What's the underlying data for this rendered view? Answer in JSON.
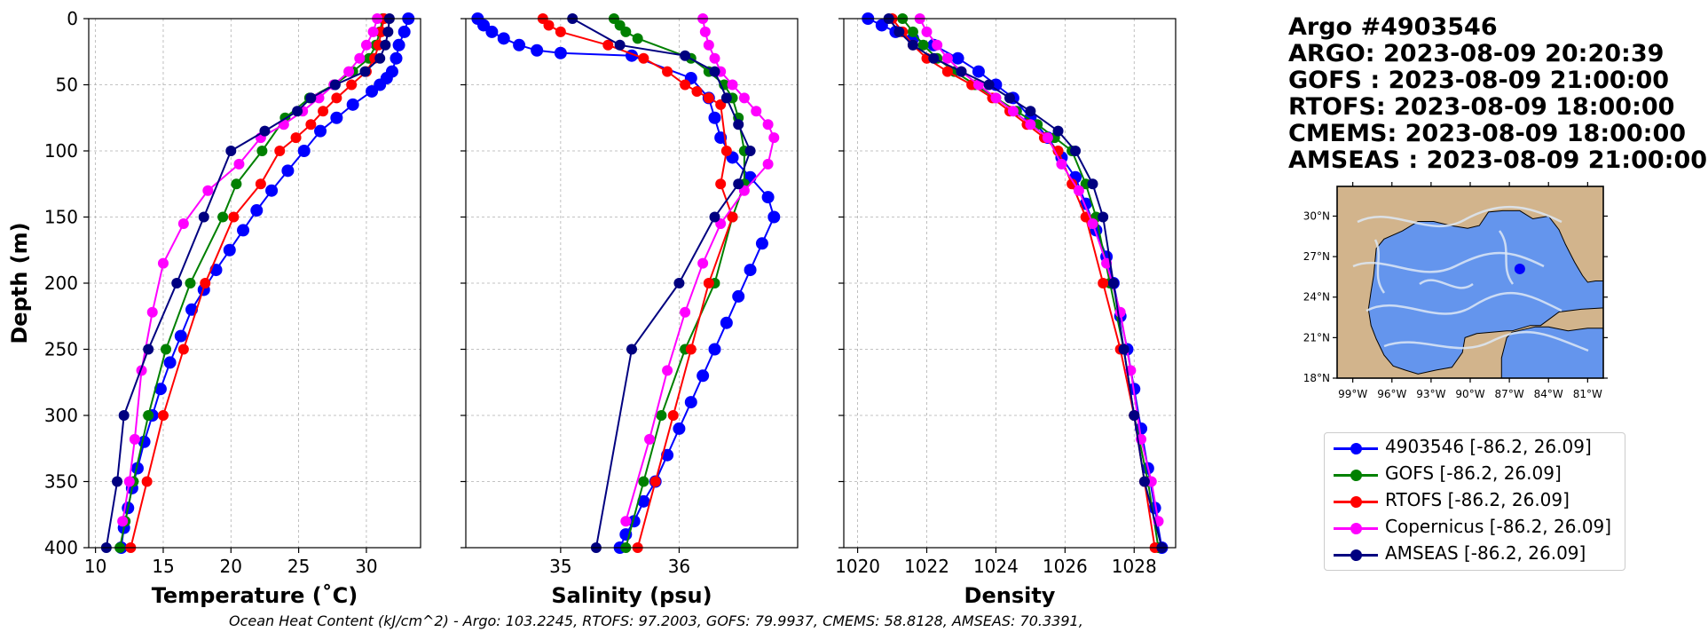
{
  "figure": {
    "footer": "Ocean Heat Content (kJ/cm^2) - Argo: 103.2245,  RTOFS: 97.2003,  GOFS: 79.9937,  CMEMS: 58.8128,  AMSEAS: 70.3391,"
  },
  "info": {
    "lines": [
      "Argo #4903546",
      "ARGO:  2023-08-09 20:20:39",
      "GOFS : 2023-08-09 21:00:00",
      "RTOFS: 2023-08-09 18:00:00",
      "CMEMS: 2023-08-09 18:00:00",
      "AMSEAS : 2023-08-09 21:00:00"
    ]
  },
  "legend": {
    "items": [
      {
        "label": "4903546 [-86.2, 26.09]",
        "color": "#0000ff"
      },
      {
        "label": "GOFS [-86.2, 26.09]",
        "color": "#008000"
      },
      {
        "label": "RTOFS [-86.2, 26.09]",
        "color": "#ff0000"
      },
      {
        "label": "Copernicus [-86.2, 26.09]",
        "color": "#ff00ff"
      },
      {
        "label": "AMSEAS [-86.2, 26.09]",
        "color": "#000080"
      }
    ]
  },
  "chart_data": [
    {
      "type": "line",
      "xlabel": "Temperature (˚C)",
      "ylabel": "Depth (m)",
      "xlim": [
        9.5,
        34
      ],
      "ylim": [
        400,
        0
      ],
      "xticks": [
        10,
        15,
        20,
        25,
        30
      ],
      "yticks": [
        0,
        50,
        100,
        150,
        200,
        250,
        300,
        350,
        400
      ],
      "grid": true,
      "series": [
        {
          "name": "4903546",
          "color": "#0000ff",
          "x": [
            33.1,
            32.8,
            32.4,
            32.2,
            31.9,
            31.5,
            31.0,
            30.4,
            29.0,
            27.8,
            26.6,
            25.4,
            24.2,
            23.0,
            21.9,
            20.9,
            19.9,
            18.9,
            18.0,
            17.1,
            16.3,
            15.5,
            14.8,
            14.2,
            13.6,
            13.1,
            12.7,
            12.4,
            12.1,
            11.9
          ],
          "y": [
            0,
            10,
            20,
            30,
            40,
            45,
            50,
            55,
            65,
            75,
            85,
            100,
            115,
            130,
            145,
            160,
            175,
            190,
            205,
            220,
            240,
            260,
            280,
            300,
            320,
            340,
            355,
            370,
            385,
            400
          ]
        },
        {
          "name": "GOFS",
          "color": "#008000",
          "x": [
            31.2,
            31.0,
            30.7,
            30.2,
            29.0,
            27.6,
            25.8,
            24.0,
            22.3,
            20.4,
            19.4,
            17.0,
            15.2,
            13.9,
            12.8,
            12.2,
            11.8
          ],
          "y": [
            0,
            10,
            20,
            30,
            40,
            50,
            60,
            75,
            100,
            125,
            150,
            200,
            250,
            300,
            350,
            380,
            400
          ]
        },
        {
          "name": "RTOFS",
          "color": "#ff0000",
          "x": [
            31.3,
            31.1,
            30.9,
            30.6,
            30.0,
            28.9,
            27.8,
            26.8,
            25.9,
            24.8,
            23.6,
            22.2,
            20.2,
            18.1,
            16.5,
            15.0,
            13.8,
            12.6
          ],
          "y": [
            0,
            10,
            20,
            30,
            40,
            50,
            60,
            70,
            80,
            90,
            100,
            125,
            150,
            200,
            250,
            300,
            350,
            400
          ]
        },
        {
          "name": "Copernicus",
          "color": "#ff00ff",
          "x": [
            30.8,
            30.5,
            30.0,
            29.5,
            28.7,
            27.6,
            26.5,
            25.3,
            23.9,
            22.2,
            20.6,
            18.3,
            16.5,
            15.0,
            14.2,
            13.4,
            12.9,
            12.5,
            12.0
          ],
          "y": [
            0,
            10,
            20,
            30,
            40,
            50,
            60,
            70,
            80,
            90,
            110,
            130,
            155,
            185,
            222,
            266,
            318,
            350,
            380
          ]
        },
        {
          "name": "AMSEAS",
          "color": "#000080",
          "x": [
            31.7,
            31.6,
            31.4,
            31.0,
            29.9,
            27.7,
            25.9,
            24.9,
            22.5,
            20.0,
            18.0,
            16.0,
            13.9,
            12.1,
            11.6,
            10.8
          ],
          "y": [
            0,
            10,
            20,
            30,
            40,
            50,
            60,
            70,
            85,
            100,
            150,
            200,
            250,
            300,
            350,
            400
          ]
        }
      ]
    },
    {
      "type": "line",
      "xlabel": "Salinity (psu)",
      "ylabel": "",
      "xlim": [
        34.2,
        37.0
      ],
      "ylim": [
        400,
        0
      ],
      "xticks": [
        35,
        36
      ],
      "yticks": [
        0,
        50,
        100,
        150,
        200,
        250,
        300,
        350,
        400
      ],
      "grid": true,
      "series": [
        {
          "name": "4903546",
          "color": "#0000ff",
          "x": [
            34.3,
            34.35,
            34.42,
            34.52,
            34.65,
            34.8,
            35.0,
            35.6,
            36.1,
            36.25,
            36.3,
            36.35,
            36.45,
            36.6,
            36.75,
            36.8,
            36.7,
            36.6,
            36.5,
            36.4,
            36.3,
            36.2,
            36.1,
            36.0,
            35.9,
            35.8,
            35.7,
            35.62,
            35.55,
            35.5
          ],
          "y": [
            0,
            5,
            10,
            15,
            20,
            24,
            26,
            28,
            45,
            60,
            75,
            90,
            105,
            120,
            135,
            150,
            170,
            190,
            210,
            230,
            250,
            270,
            290,
            310,
            330,
            350,
            365,
            380,
            390,
            400
          ]
        },
        {
          "name": "GOFS",
          "color": "#008000",
          "x": [
            35.45,
            35.5,
            35.55,
            35.65,
            36.1,
            36.25,
            36.38,
            36.45,
            36.5,
            36.55,
            36.55,
            36.45,
            36.3,
            36.05,
            35.85,
            35.7,
            35.55
          ],
          "y": [
            0,
            5,
            10,
            15,
            30,
            40,
            50,
            60,
            75,
            100,
            125,
            150,
            200,
            250,
            300,
            350,
            400
          ]
        },
        {
          "name": "RTOFS",
          "color": "#ff0000",
          "x": [
            34.85,
            34.9,
            35.0,
            35.4,
            35.7,
            35.9,
            36.05,
            36.15,
            36.25,
            36.35,
            36.4,
            36.35,
            36.45,
            36.25,
            36.1,
            35.95,
            35.8,
            35.65
          ],
          "y": [
            0,
            5,
            10,
            20,
            30,
            40,
            50,
            55,
            60,
            65,
            100,
            125,
            150,
            200,
            250,
            300,
            350,
            400
          ]
        },
        {
          "name": "Copernicus",
          "color": "#ff00ff",
          "x": [
            36.2,
            36.22,
            36.25,
            36.3,
            36.35,
            36.45,
            36.55,
            36.65,
            36.75,
            36.8,
            36.75,
            36.55,
            36.35,
            36.2,
            36.05,
            35.9,
            35.75,
            35.55
          ],
          "y": [
            0,
            10,
            20,
            30,
            40,
            50,
            60,
            70,
            80,
            90,
            110,
            130,
            155,
            185,
            222,
            266,
            318,
            380
          ]
        },
        {
          "name": "AMSEAS",
          "color": "#000080",
          "x": [
            35.1,
            35.5,
            36.05,
            36.3,
            36.4,
            36.5,
            36.6,
            36.5,
            36.3,
            36.0,
            35.6,
            35.3
          ],
          "y": [
            0,
            20,
            28,
            40,
            60,
            80,
            100,
            125,
            150,
            200,
            250,
            400
          ]
        }
      ]
    },
    {
      "type": "line",
      "xlabel": "Density",
      "ylabel": "",
      "xlim": [
        1019.6,
        1029.2
      ],
      "ylim": [
        400,
        0
      ],
      "xticks": [
        1020,
        1022,
        1024,
        1026,
        1028
      ],
      "yticks": [
        0,
        50,
        100,
        150,
        200,
        250,
        300,
        350,
        400
      ],
      "grid": true,
      "series": [
        {
          "name": "4903546",
          "color": "#0000ff",
          "x": [
            1020.3,
            1020.7,
            1021.1,
            1021.6,
            1022.2,
            1022.9,
            1023.5,
            1024.0,
            1024.5,
            1025.0,
            1025.5,
            1025.9,
            1026.3,
            1026.6,
            1026.9,
            1027.2,
            1027.4,
            1027.6,
            1027.8,
            1028.0,
            1028.2,
            1028.4,
            1028.6,
            1028.8
          ],
          "y": [
            0,
            5,
            10,
            15,
            20,
            30,
            40,
            50,
            60,
            75,
            90,
            105,
            120,
            140,
            160,
            180,
            200,
            225,
            250,
            280,
            310,
            340,
            370,
            400
          ]
        },
        {
          "name": "GOFS",
          "color": "#008000",
          "x": [
            1021.3,
            1021.6,
            1021.9,
            1022.3,
            1022.8,
            1023.4,
            1024.0,
            1024.6,
            1025.2,
            1025.7,
            1026.2,
            1026.6,
            1026.9,
            1027.3,
            1027.7,
            1028.0,
            1028.4,
            1028.7
          ],
          "y": [
            0,
            10,
            20,
            30,
            40,
            50,
            60,
            70,
            80,
            90,
            100,
            125,
            150,
            200,
            250,
            300,
            350,
            400
          ]
        },
        {
          "name": "RTOFS",
          "color": "#ff0000",
          "x": [
            1021.0,
            1021.3,
            1021.6,
            1022.0,
            1022.6,
            1023.3,
            1023.9,
            1024.4,
            1024.9,
            1025.4,
            1025.8,
            1026.2,
            1026.6,
            1027.1,
            1027.6,
            1028.0,
            1028.3,
            1028.6
          ],
          "y": [
            0,
            10,
            20,
            30,
            40,
            50,
            60,
            70,
            80,
            90,
            100,
            125,
            150,
            200,
            250,
            300,
            350,
            400
          ]
        },
        {
          "name": "Copernicus",
          "color": "#ff00ff",
          "x": [
            1021.8,
            1022.0,
            1022.3,
            1022.6,
            1023.0,
            1023.5,
            1024.0,
            1024.5,
            1025.0,
            1025.5,
            1025.9,
            1026.4,
            1026.8,
            1027.2,
            1027.6,
            1027.9,
            1028.2,
            1028.5,
            1028.7
          ],
          "y": [
            0,
            10,
            20,
            30,
            40,
            50,
            60,
            70,
            80,
            90,
            110,
            130,
            155,
            185,
            222,
            266,
            318,
            350,
            380
          ]
        },
        {
          "name": "AMSEAS",
          "color": "#000080",
          "x": [
            1020.9,
            1021.2,
            1021.6,
            1022.2,
            1023.0,
            1023.8,
            1024.4,
            1025.0,
            1025.8,
            1026.3,
            1026.8,
            1027.1,
            1027.4,
            1027.7,
            1028.0,
            1028.3,
            1028.8
          ],
          "y": [
            0,
            10,
            20,
            30,
            40,
            50,
            60,
            70,
            85,
            100,
            125,
            150,
            200,
            250,
            300,
            350,
            400
          ]
        }
      ]
    }
  ],
  "inset_map": {
    "lat_ticks": [
      "30°N",
      "27°N",
      "24°N",
      "21°N",
      "18°N"
    ],
    "lon_ticks": [
      "99°W",
      "96°W",
      "93°W",
      "90°W",
      "87°W",
      "84°W",
      "81°W"
    ],
    "lon_range": [
      -100.2,
      -79.8
    ],
    "lat_range": [
      18,
      32.2
    ],
    "marker": {
      "lon": -86.2,
      "lat": 26.09,
      "color": "#0000ff"
    },
    "ocean_color": "#6495ed",
    "land_color": "#d2b48c"
  }
}
